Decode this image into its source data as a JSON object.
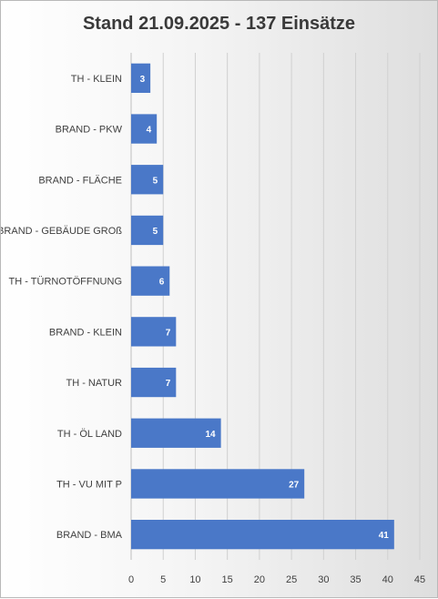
{
  "chart_data": {
    "type": "bar",
    "orientation": "horizontal",
    "title": "Stand 21.09.2025  - 137 Einsätze",
    "categories": [
      "TH - KLEIN",
      "BRAND - PKW",
      "BRAND - FLÄCHE",
      "BRAND - GEBÄUDE GROß",
      "TH - TÜRNOTÖFFNUNG",
      "BRAND - KLEIN",
      "TH - NATUR",
      "TH - ÖL LAND",
      "TH - VU MIT P",
      "BRAND - BMA"
    ],
    "values": [
      3,
      4,
      5,
      5,
      6,
      7,
      7,
      14,
      27,
      41
    ],
    "xlim": [
      0,
      45
    ],
    "xticks": [
      0,
      5,
      10,
      15,
      20,
      25,
      30,
      35,
      40,
      45
    ],
    "grid": true,
    "legend": "none",
    "bar_color": "#4a78c8",
    "data_labels": true
  }
}
